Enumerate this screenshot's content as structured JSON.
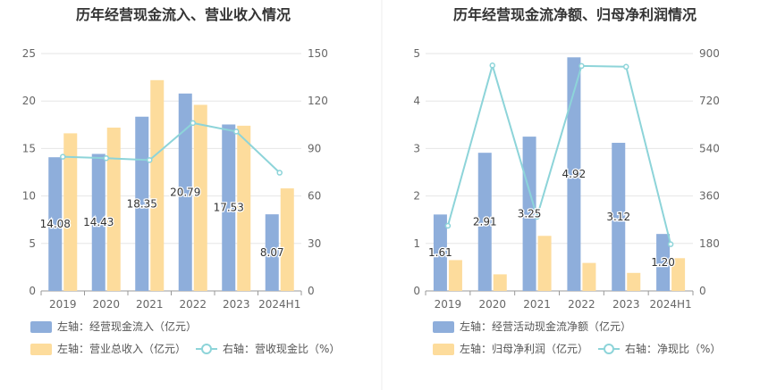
{
  "chart_data": [
    {
      "type": "bar",
      "title": "历年经营现金流入、营业收入情况",
      "categories": [
        "2019",
        "2020",
        "2021",
        "2022",
        "2023",
        "2024H1"
      ],
      "left_axis": {
        "ticks": [
          "0",
          "5",
          "10",
          "15",
          "20",
          "25"
        ],
        "ylim": [
          0,
          25
        ]
      },
      "right_axis": {
        "ticks": [
          "0",
          "30",
          "60",
          "90",
          "120",
          "150"
        ],
        "ylim": [
          0,
          150
        ]
      },
      "series": [
        {
          "name": "左轴：经营现金流入（亿元）",
          "kind": "bar",
          "axis": "left",
          "color": "#8eaedb",
          "values": [
            14.08,
            14.43,
            18.35,
            20.79,
            17.53,
            8.07
          ],
          "labels": [
            "14.08",
            "14.43",
            "18.35",
            "20.79",
            "17.53",
            "8.07"
          ]
        },
        {
          "name": "左轴：营业总收入（亿元）",
          "kind": "bar",
          "axis": "left",
          "color": "#fddc9c",
          "values": [
            16.6,
            17.2,
            22.2,
            19.6,
            17.4,
            10.8
          ]
        },
        {
          "name": "右轴：营收现金比（%）",
          "kind": "line",
          "axis": "right",
          "color": "#8dd4d9",
          "values": [
            84.8,
            83.9,
            82.7,
            106.1,
            100.7,
            74.7
          ]
        }
      ]
    },
    {
      "type": "bar",
      "title": "历年经营现金流净额、归母净利润情况",
      "categories": [
        "2019",
        "2020",
        "2021",
        "2022",
        "2023",
        "2024H1"
      ],
      "left_axis": {
        "ticks": [
          "0",
          "1",
          "2",
          "3",
          "4",
          "5"
        ],
        "ylim": [
          0,
          5
        ]
      },
      "right_axis": {
        "ticks": [
          "0",
          "180",
          "360",
          "540",
          "720",
          "900"
        ],
        "ylim": [
          0,
          900
        ]
      },
      "series": [
        {
          "name": "左轴：经营活动现金流净额（亿元）",
          "kind": "bar",
          "axis": "left",
          "color": "#8eaedb",
          "values": [
            1.61,
            2.91,
            3.25,
            4.92,
            3.12,
            1.2
          ],
          "labels": [
            "1.61",
            "2.91",
            "3.25",
            "4.92",
            "3.12",
            "1.20"
          ]
        },
        {
          "name": "左轴：归母净利润（亿元）",
          "kind": "bar",
          "axis": "left",
          "color": "#fddc9c",
          "values": [
            0.65,
            0.35,
            1.16,
            0.59,
            0.38,
            0.69
          ]
        },
        {
          "name": "右轴：净现比（%）",
          "kind": "line",
          "axis": "right",
          "color": "#8dd4d9",
          "values": [
            247,
            855,
            281,
            853,
            850,
            177
          ]
        }
      ]
    }
  ]
}
